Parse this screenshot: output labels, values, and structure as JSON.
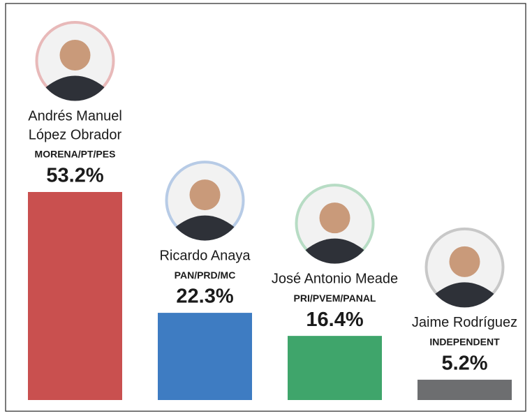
{
  "chart_data": {
    "type": "bar",
    "categories": [
      [
        "Andrés Manuel",
        "López Obrador"
      ],
      [
        "Ricardo Anaya"
      ],
      [
        "José Antonio Meade"
      ],
      [
        "Jaime Rodríguez"
      ]
    ],
    "parties": [
      "MORENA/PT/PES",
      "PAN/PRD/MC",
      "PRI/PVEM/PANAL",
      "INDEPENDENT"
    ],
    "values": [
      53.2,
      22.3,
      16.4,
      5.2
    ],
    "value_labels": [
      "53.2%",
      "22.3%",
      "16.4%",
      "5.2%"
    ],
    "colors": [
      "#c9504f",
      "#3e7cc2",
      "#3fa56b",
      "#6d6e70"
    ]
  }
}
